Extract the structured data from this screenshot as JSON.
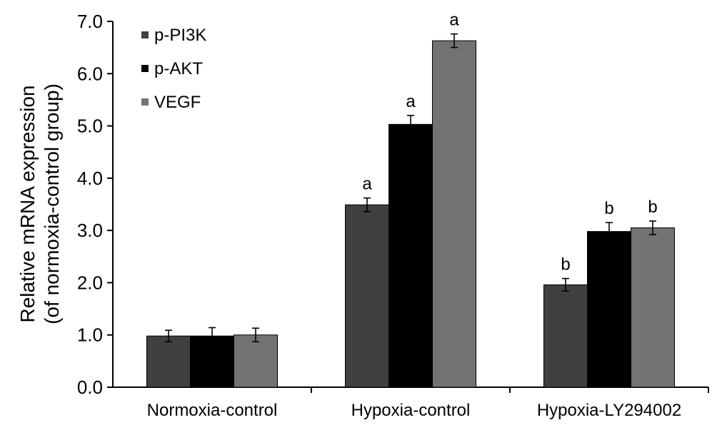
{
  "chart_data": {
    "type": "bar",
    "title": "",
    "xlabel": "",
    "ylabel": [
      "Relative mRNA expression",
      "(of normoxia-control group)"
    ],
    "ylim": [
      0,
      7
    ],
    "yticks": [
      "0.0",
      "1.0",
      "2.0",
      "3.0",
      "4.0",
      "5.0",
      "6.0",
      "7.0"
    ],
    "grid": false,
    "legend_position": "top-left",
    "categories": [
      "Normoxia-control",
      "Hypoxia-control",
      "Hypoxia-LY294002"
    ],
    "series": [
      {
        "name": "p-PI3K",
        "color": "#404040",
        "values": [
          0.98,
          3.49,
          1.96
        ],
        "errors": [
          0.11,
          0.13,
          0.12
        ],
        "labels": [
          "",
          "a",
          "b"
        ]
      },
      {
        "name": "p-AKT",
        "color": "#000000",
        "values": [
          0.98,
          5.03,
          2.98
        ],
        "errors": [
          0.16,
          0.17,
          0.17
        ],
        "labels": [
          "",
          "a",
          "b"
        ]
      },
      {
        "name": "VEGF",
        "color": "#737373",
        "values": [
          1.0,
          6.63,
          3.05
        ],
        "errors": [
          0.13,
          0.13,
          0.13
        ],
        "labels": [
          "",
          "a",
          "b"
        ]
      }
    ]
  }
}
